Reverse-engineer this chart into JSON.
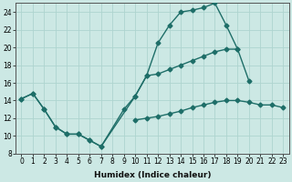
{
  "xlabel": "Humidex (Indice chaleur)",
  "xlim": [
    -0.5,
    23.5
  ],
  "ylim": [
    8,
    25
  ],
  "yticks": [
    8,
    10,
    12,
    14,
    16,
    18,
    20,
    22,
    24
  ],
  "xticks": [
    0,
    1,
    2,
    3,
    4,
    5,
    6,
    7,
    8,
    9,
    10,
    11,
    12,
    13,
    14,
    15,
    16,
    17,
    18,
    19,
    20,
    21,
    22,
    23
  ],
  "bg_color": "#cce8e4",
  "grid_color": "#aed4cf",
  "line_color": "#1e6e68",
  "line1_x": [
    0,
    1,
    2,
    3,
    4,
    5,
    6,
    7,
    9,
    10,
    11,
    12,
    13,
    14,
    15,
    16,
    17,
    18,
    19
  ],
  "line1_y": [
    14.2,
    14.8,
    13.0,
    11.0,
    10.2,
    10.2,
    9.5,
    8.8,
    13.0,
    14.5,
    16.8,
    20.5,
    22.5,
    24.0,
    24.2,
    24.5,
    25.0,
    22.5,
    19.8
  ],
  "line2_x": [
    0,
    1,
    2,
    3,
    4,
    5,
    6,
    7,
    10,
    11,
    12,
    13,
    14,
    15,
    16,
    17,
    18,
    19,
    20
  ],
  "line2_y": [
    14.2,
    14.8,
    13.0,
    11.0,
    10.2,
    10.2,
    9.5,
    8.8,
    14.5,
    16.8,
    17.0,
    17.5,
    18.0,
    18.5,
    19.0,
    19.5,
    19.8,
    19.8,
    16.2
  ],
  "line3_x": [
    10,
    11,
    12,
    13,
    14,
    15,
    16,
    17,
    18,
    19,
    20,
    21,
    22,
    23
  ],
  "line3_y": [
    11.8,
    12.0,
    12.2,
    12.5,
    12.8,
    13.2,
    13.5,
    13.8,
    14.0,
    14.0,
    13.8,
    13.5,
    13.5,
    13.2
  ],
  "tick_fontsize": 5.5,
  "xlabel_fontsize": 6.5
}
